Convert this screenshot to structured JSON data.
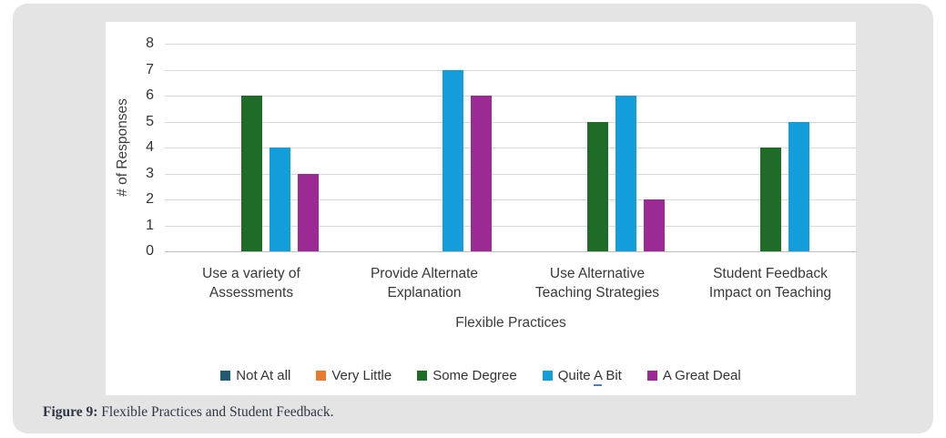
{
  "figure": {
    "caption_label": "Figure 9:",
    "caption_text": " Flexible Practices and Student Feedback."
  },
  "chart_data": {
    "type": "bar",
    "title": "",
    "xlabel": "Flexible Practices",
    "ylabel": "# of Responses",
    "ylim": [
      0,
      8
    ],
    "ytick_step": 1,
    "yticks": [
      0,
      1,
      2,
      3,
      4,
      5,
      6,
      7,
      8
    ],
    "grid": true,
    "legend_position": "bottom",
    "categories": [
      "Use a variety of Assessments",
      "Provide Alternate Explanation",
      "Use Alternative Teaching Strategies",
      "Student Feedback Impact on Teaching"
    ],
    "category_label_lines": [
      [
        "Use a variety of",
        "Assessments"
      ],
      [
        "Provide Alternate",
        "Explanation"
      ],
      [
        "Use Alternative",
        "Teaching Strategies"
      ],
      [
        "Student Feedback",
        "Impact on Teaching"
      ]
    ],
    "series": [
      {
        "name": "Not At all",
        "color": "#1F5B72",
        "values": [
          0,
          0,
          0,
          0
        ]
      },
      {
        "name": "Very Little",
        "color": "#E87A2E",
        "values": [
          0,
          0,
          0,
          0
        ]
      },
      {
        "name": "Some Degree",
        "color": "#1E6C28",
        "values": [
          6,
          0,
          5,
          4
        ]
      },
      {
        "name": "Quite A Bit",
        "color": "#149DDB",
        "values": [
          4,
          7,
          6,
          5
        ],
        "legend_underline_word": "A"
      },
      {
        "name": "A Great Deal",
        "color": "#9C2A94",
        "values": [
          3,
          6,
          2,
          0
        ]
      }
    ]
  },
  "style": {
    "card_bg": "#e4e4e4",
    "panel_bg": "#ffffff",
    "gridline_color": "#d9d9d9",
    "axis_line_color": "#bfbfbf",
    "text_color": "#3d3d3d",
    "caption_color": "#2e3644"
  }
}
